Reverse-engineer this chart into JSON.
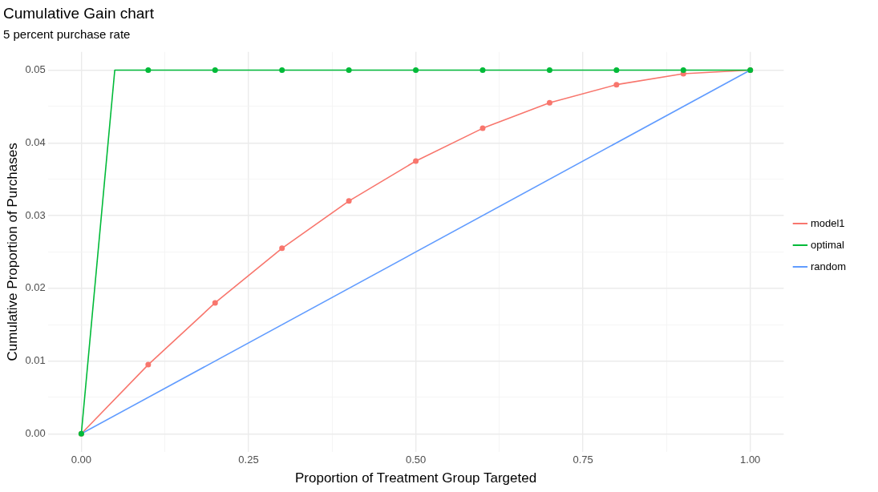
{
  "chart_data": {
    "type": "line",
    "title": "Cumulative Gain chart",
    "subtitle": "5 percent purchase rate",
    "xlabel": "Proportion of Treatment Group Targeted",
    "ylabel": "Cumulative Proportion of Purchases",
    "series": [
      {
        "name": "model1",
        "color": "#f8766d",
        "marker": "circle",
        "x": [
          0,
          0.1,
          0.2,
          0.3,
          0.4,
          0.5,
          0.6,
          0.7,
          0.8,
          0.9,
          1.0
        ],
        "values": [
          0,
          0.0095,
          0.018,
          0.0255,
          0.032,
          0.0375,
          0.042,
          0.0455,
          0.048,
          0.0495,
          0.05
        ]
      },
      {
        "name": "optimal",
        "color": "#00ba38",
        "marker": "none",
        "x": [
          0,
          0.05,
          1.0
        ],
        "values": [
          0,
          0.05,
          0.05
        ]
      },
      {
        "name": "random",
        "color": "#619cff",
        "marker": "none",
        "x": [
          0,
          1.0
        ],
        "values": [
          0,
          0.05
        ]
      },
      {
        "type": "scatter",
        "color": "#00ba38",
        "marker": "circle",
        "x": [
          0,
          0.1,
          0.2,
          0.3,
          0.4,
          0.5,
          0.6,
          0.7,
          0.8,
          0.9,
          1.0
        ],
        "values": [
          0,
          0.05,
          0.05,
          0.05,
          0.05,
          0.05,
          0.05,
          0.05,
          0.05,
          0.05,
          0.05
        ]
      }
    ],
    "xlim": [
      -0.05,
      1.05
    ],
    "ylim": [
      -0.0025,
      0.0525
    ],
    "xticks": [
      {
        "value": 0,
        "label": "0.00"
      },
      {
        "value": 0.125,
        "label": null
      },
      {
        "value": 0.25,
        "label": "0.25"
      },
      {
        "value": 0.375,
        "label": null
      },
      {
        "value": 0.5,
        "label": "0.50"
      },
      {
        "value": 0.625,
        "label": null
      },
      {
        "value": 0.75,
        "label": "0.75"
      },
      {
        "value": 0.875,
        "label": null
      },
      {
        "value": 1,
        "label": "1.00"
      }
    ],
    "yticks": [
      {
        "value": 0,
        "label": "0.00"
      },
      {
        "value": 0.005,
        "label": null
      },
      {
        "value": 0.01,
        "label": "0.01"
      },
      {
        "value": 0.015,
        "label": null
      },
      {
        "value": 0.02,
        "label": "0.02"
      },
      {
        "value": 0.025,
        "label": null
      },
      {
        "value": 0.03,
        "label": "0.03"
      },
      {
        "value": 0.035,
        "label": null
      },
      {
        "value": 0.04,
        "label": "0.04"
      },
      {
        "value": 0.045,
        "label": null
      },
      {
        "value": 0.05,
        "label": "0.05"
      }
    ],
    "grid": true,
    "legend": "right"
  }
}
